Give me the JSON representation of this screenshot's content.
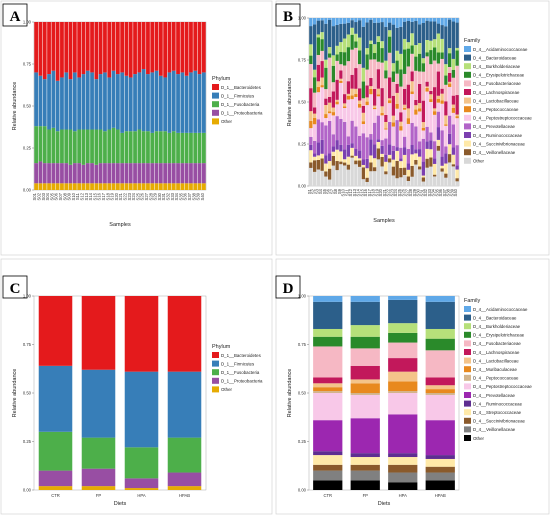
{
  "figure": {
    "panel_letters": [
      "A",
      "B",
      "C",
      "D"
    ]
  },
  "chart_data": [
    {
      "panel": "A",
      "type": "bar",
      "stacked": true,
      "xlabel": "Samples",
      "ylabel": "Relative abundance",
      "ylim": [
        0,
        1
      ],
      "yticks": [
        "0.00",
        "0.25",
        "0.50",
        "0.75",
        "1.00"
      ],
      "legend_title": "Phylum",
      "legend_position": "right",
      "n_samples": 40,
      "categories": [
        "S01",
        "S02",
        "S03",
        "S04",
        "S05",
        "S06",
        "S07",
        "S08",
        "S09",
        "S10",
        "S11",
        "S12",
        "S13",
        "S14",
        "S15",
        "S16",
        "S17",
        "S18",
        "S19",
        "S20",
        "S21",
        "S22",
        "S23",
        "S24",
        "S25",
        "S26",
        "S27",
        "S28",
        "S29",
        "S30",
        "S31",
        "S32",
        "S33",
        "S34",
        "S35",
        "S36",
        "S37",
        "S38",
        "S39",
        "S40"
      ],
      "series": [
        {
          "name": "D_1__Bacteroidetes",
          "color": "#e41a1c",
          "values": [
            0.3,
            0.32,
            0.34,
            0.31,
            0.29,
            0.35,
            0.33,
            0.3,
            0.34,
            0.3,
            0.33,
            0.31,
            0.29,
            0.3,
            0.34,
            0.31,
            0.3,
            0.33,
            0.29,
            0.31,
            0.3,
            0.32,
            0.33,
            0.31,
            0.3,
            0.28,
            0.31,
            0.3,
            0.29,
            0.32,
            0.33,
            0.3,
            0.29,
            0.31,
            0.3,
            0.32,
            0.3,
            0.29,
            0.31,
            0.3
          ]
        },
        {
          "name": "D_1__Firmicutes",
          "color": "#377eb8",
          "values": [
            0.32,
            0.3,
            0.28,
            0.33,
            0.34,
            0.3,
            0.31,
            0.34,
            0.3,
            0.35,
            0.31,
            0.33,
            0.35,
            0.34,
            0.3,
            0.33,
            0.35,
            0.31,
            0.34,
            0.33,
            0.36,
            0.33,
            0.32,
            0.34,
            0.34,
            0.37,
            0.34,
            0.36,
            0.36,
            0.33,
            0.32,
            0.36,
            0.36,
            0.35,
            0.36,
            0.34,
            0.36,
            0.37,
            0.35,
            0.36
          ]
        },
        {
          "name": "D_1__Fusobacteria",
          "color": "#4daf4a",
          "values": [
            0.22,
            0.21,
            0.22,
            0.2,
            0.21,
            0.19,
            0.2,
            0.2,
            0.21,
            0.19,
            0.2,
            0.21,
            0.2,
            0.2,
            0.21,
            0.2,
            0.19,
            0.2,
            0.21,
            0.2,
            0.18,
            0.19,
            0.19,
            0.19,
            0.2,
            0.19,
            0.19,
            0.18,
            0.19,
            0.19,
            0.19,
            0.18,
            0.19,
            0.18,
            0.18,
            0.18,
            0.18,
            0.18,
            0.18,
            0.18
          ]
        },
        {
          "name": "D_1__Proteobacteria",
          "color": "#984ea3",
          "values": [
            0.12,
            0.13,
            0.12,
            0.12,
            0.12,
            0.12,
            0.12,
            0.12,
            0.11,
            0.12,
            0.12,
            0.11,
            0.12,
            0.12,
            0.11,
            0.12,
            0.12,
            0.12,
            0.12,
            0.12,
            0.12,
            0.12,
            0.12,
            0.12,
            0.12,
            0.12,
            0.12,
            0.12,
            0.12,
            0.12,
            0.12,
            0.12,
            0.12,
            0.12,
            0.12,
            0.12,
            0.12,
            0.12,
            0.12,
            0.12
          ]
        },
        {
          "name": "Other",
          "color": "#e6ab02",
          "values": [
            0.04,
            0.04,
            0.04,
            0.04,
            0.04,
            0.04,
            0.04,
            0.04,
            0.04,
            0.04,
            0.04,
            0.04,
            0.04,
            0.04,
            0.04,
            0.04,
            0.04,
            0.04,
            0.04,
            0.04,
            0.04,
            0.04,
            0.04,
            0.04,
            0.04,
            0.04,
            0.04,
            0.04,
            0.04,
            0.04,
            0.04,
            0.04,
            0.04,
            0.04,
            0.04,
            0.04,
            0.04,
            0.04,
            0.04,
            0.04
          ]
        }
      ]
    },
    {
      "panel": "B",
      "type": "bar",
      "stacked": true,
      "xlabel": "Samples",
      "ylabel": "Relative abundance",
      "ylim": [
        0,
        1
      ],
      "yticks": [
        "0.00",
        "0.25",
        "0.50",
        "0.75",
        "1.00"
      ],
      "legend_title": "Family",
      "legend_position": "right",
      "n_samples": 40,
      "series": [
        {
          "name": "D_4__Acidaminococcaceae",
          "color": "#5fa8e8",
          "base": 0.03
        },
        {
          "name": "D_4__Bacteroidaceae",
          "color": "#2c5f8a",
          "base": 0.14
        },
        {
          "name": "D_4__Burkholderiaceae",
          "color": "#b6e07a",
          "base": 0.05
        },
        {
          "name": "D_4__Erysipelotrichaceae",
          "color": "#2a8a2a",
          "base": 0.07
        },
        {
          "name": "D_4__Fusobacteriaceae",
          "color": "#f6b8c4",
          "base": 0.12
        },
        {
          "name": "D_4__Lachnospiraceae",
          "color": "#c2185b",
          "base": 0.08
        },
        {
          "name": "D_4__Lactobacillaceae",
          "color": "#f4c48a",
          "base": 0.03
        },
        {
          "name": "D_4__Peptococcaceae",
          "color": "#e8891e",
          "base": 0.02
        },
        {
          "name": "D_4__Peptostreptococcaceae",
          "color": "#f8c8e8",
          "base": 0.14
        },
        {
          "name": "D_4__Prevotellaceae",
          "color": "#b264c8",
          "base": 0.1
        },
        {
          "name": "D_4__Ruminococcaceae",
          "color": "#7b3fb0",
          "base": 0.05
        },
        {
          "name": "D_4__Succinivibrionaceae",
          "color": "#ffe9a8",
          "base": 0.04
        },
        {
          "name": "D_4__Veillonellaceae",
          "color": "#8a5a2b",
          "base": 0.04
        },
        {
          "name": "Other",
          "color": "#d8d8d8",
          "base": 0.09
        }
      ]
    },
    {
      "panel": "C",
      "type": "bar",
      "stacked": true,
      "xlabel": "Diets",
      "ylabel": "Relative abundance",
      "ylim": [
        0,
        1
      ],
      "yticks": [
        "0.00",
        "0.25",
        "0.50",
        "0.75",
        "1.00"
      ],
      "legend_title": "Phylum",
      "legend_position": "right",
      "categories": [
        "CTR",
        "FP",
        "HPA",
        "HPAB"
      ],
      "series": [
        {
          "name": "D_1__Bacteroidetes",
          "color": "#e41a1c",
          "values": [
            0.36,
            0.38,
            0.39,
            0.39
          ]
        },
        {
          "name": "D_1__Firmicutes",
          "color": "#377eb8",
          "values": [
            0.34,
            0.35,
            0.39,
            0.34
          ]
        },
        {
          "name": "D_1__Fusobacteria",
          "color": "#4daf4a",
          "values": [
            0.2,
            0.16,
            0.16,
            0.18
          ]
        },
        {
          "name": "D_1__Proteobacteria",
          "color": "#984ea3",
          "values": [
            0.08,
            0.09,
            0.05,
            0.07
          ]
        },
        {
          "name": "Other",
          "color": "#e6ab02",
          "values": [
            0.02,
            0.02,
            0.01,
            0.02
          ]
        }
      ]
    },
    {
      "panel": "D",
      "type": "bar",
      "stacked": true,
      "xlabel": "Diets",
      "ylabel": "Relative abundance",
      "ylim": [
        0,
        1
      ],
      "yticks": [
        "0.00",
        "0.25",
        "0.50",
        "0.75",
        "1.00"
      ],
      "legend_title": "Family",
      "legend_position": "right",
      "categories": [
        "CTR",
        "FP",
        "HPA",
        "HPAB"
      ],
      "series": [
        {
          "name": "D_4__Acidaminococcaceae",
          "color": "#5fa8e8",
          "values": [
            0.03,
            0.03,
            0.02,
            0.03
          ]
        },
        {
          "name": "D_4__Bacteroidaceae",
          "color": "#2c5f8a",
          "values": [
            0.14,
            0.12,
            0.12,
            0.14
          ]
        },
        {
          "name": "D_4__Burkholderiaceae",
          "color": "#b6e07a",
          "values": [
            0.04,
            0.06,
            0.05,
            0.05
          ]
        },
        {
          "name": "D_4__Erysipelotrichaceae",
          "color": "#2a8a2a",
          "values": [
            0.05,
            0.06,
            0.05,
            0.06
          ]
        },
        {
          "name": "D_4__Fusobacteriaceae",
          "color": "#f6b8c4",
          "values": [
            0.16,
            0.09,
            0.08,
            0.14
          ]
        },
        {
          "name": "D_4__Lachnospiraceae",
          "color": "#c2185b",
          "values": [
            0.03,
            0.07,
            0.07,
            0.04
          ]
        },
        {
          "name": "D_4__Lactobacillaceae",
          "color": "#f4c48a",
          "values": [
            0.02,
            0.02,
            0.05,
            0.02
          ]
        },
        {
          "name": "D_4__Muribaculaceae",
          "color": "#e8891e",
          "values": [
            0.02,
            0.05,
            0.05,
            0.02
          ]
        },
        {
          "name": "D_4__Peptococcaceae",
          "color": "#d2b48c",
          "values": [
            0.01,
            0.01,
            0.01,
            0.01
          ]
        },
        {
          "name": "D_4__Peptostreptococcaceae",
          "color": "#f8c8e8",
          "values": [
            0.14,
            0.12,
            0.11,
            0.13
          ]
        },
        {
          "name": "D_4__Prevotellaceae",
          "color": "#9c27b0",
          "values": [
            0.16,
            0.18,
            0.2,
            0.18
          ]
        },
        {
          "name": "D_4__Ruminococcaceae",
          "color": "#5e2d91",
          "values": [
            0.02,
            0.02,
            0.02,
            0.02
          ]
        },
        {
          "name": "D_4__Streptococcaceae",
          "color": "#ffe9a8",
          "values": [
            0.05,
            0.04,
            0.04,
            0.04
          ]
        },
        {
          "name": "D_4__Succinivibrionaceae",
          "color": "#8a5a2b",
          "values": [
            0.03,
            0.03,
            0.04,
            0.03
          ]
        },
        {
          "name": "D_4__Veillonellaceae",
          "color": "#808080",
          "values": [
            0.05,
            0.05,
            0.05,
            0.04
          ]
        },
        {
          "name": "Other",
          "color": "#000000",
          "values": [
            0.05,
            0.05,
            0.04,
            0.05
          ]
        }
      ]
    }
  ]
}
